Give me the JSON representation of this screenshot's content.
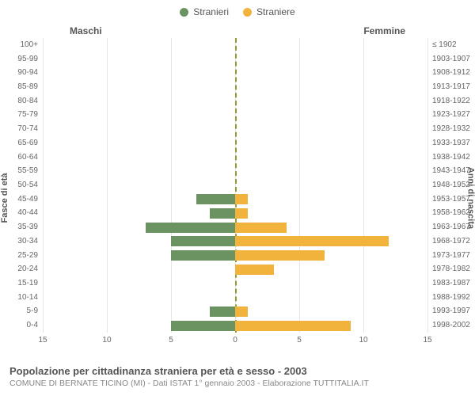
{
  "chart": {
    "type": "population-pyramid",
    "legend": [
      {
        "label": "Stranieri",
        "color": "#6b9362"
      },
      {
        "label": "Straniere",
        "color": "#f2b33d"
      }
    ],
    "side_titles": {
      "left": "Maschi",
      "right": "Femmine"
    },
    "axis_titles": {
      "left": "Fasce di età",
      "right": "Anni di nascita"
    },
    "x_ticks": [
      15,
      10,
      5,
      0,
      5,
      10,
      15
    ],
    "x_max": 15,
    "colors": {
      "male": "#6b9362",
      "female": "#f2b33d",
      "grid": "#e5e5e5",
      "center_dash": "#999933",
      "background": "#ffffff",
      "text": "#555555"
    },
    "rows": [
      {
        "age": "100+",
        "birth": "≤ 1902",
        "m": 0,
        "f": 0
      },
      {
        "age": "95-99",
        "birth": "1903-1907",
        "m": 0,
        "f": 0
      },
      {
        "age": "90-94",
        "birth": "1908-1912",
        "m": 0,
        "f": 0
      },
      {
        "age": "85-89",
        "birth": "1913-1917",
        "m": 0,
        "f": 0
      },
      {
        "age": "80-84",
        "birth": "1918-1922",
        "m": 0,
        "f": 0
      },
      {
        "age": "75-79",
        "birth": "1923-1927",
        "m": 0,
        "f": 0
      },
      {
        "age": "70-74",
        "birth": "1928-1932",
        "m": 0,
        "f": 0
      },
      {
        "age": "65-69",
        "birth": "1933-1937",
        "m": 0,
        "f": 0
      },
      {
        "age": "60-64",
        "birth": "1938-1942",
        "m": 0,
        "f": 0
      },
      {
        "age": "55-59",
        "birth": "1943-1947",
        "m": 0,
        "f": 0
      },
      {
        "age": "50-54",
        "birth": "1948-1952",
        "m": 0,
        "f": 0
      },
      {
        "age": "45-49",
        "birth": "1953-1957",
        "m": 3,
        "f": 1
      },
      {
        "age": "40-44",
        "birth": "1958-1962",
        "m": 2,
        "f": 1
      },
      {
        "age": "35-39",
        "birth": "1963-1967",
        "m": 7,
        "f": 4
      },
      {
        "age": "30-34",
        "birth": "1968-1972",
        "m": 5,
        "f": 12
      },
      {
        "age": "25-29",
        "birth": "1973-1977",
        "m": 5,
        "f": 7
      },
      {
        "age": "20-24",
        "birth": "1978-1982",
        "m": 0,
        "f": 3
      },
      {
        "age": "15-19",
        "birth": "1983-1987",
        "m": 0,
        "f": 0
      },
      {
        "age": "10-14",
        "birth": "1988-1992",
        "m": 0,
        "f": 0
      },
      {
        "age": "5-9",
        "birth": "1993-1997",
        "m": 2,
        "f": 1
      },
      {
        "age": "0-4",
        "birth": "1998-2002",
        "m": 5,
        "f": 9
      }
    ],
    "font": {
      "tick": 10,
      "axis_title": 11,
      "side_title": 12,
      "legend": 12
    }
  },
  "footer": {
    "title": "Popolazione per cittadinanza straniera per età e sesso - 2003",
    "subtitle": "COMUNE DI BERNATE TICINO (MI) - Dati ISTAT 1° gennaio 2003 - Elaborazione TUTTITALIA.IT"
  }
}
